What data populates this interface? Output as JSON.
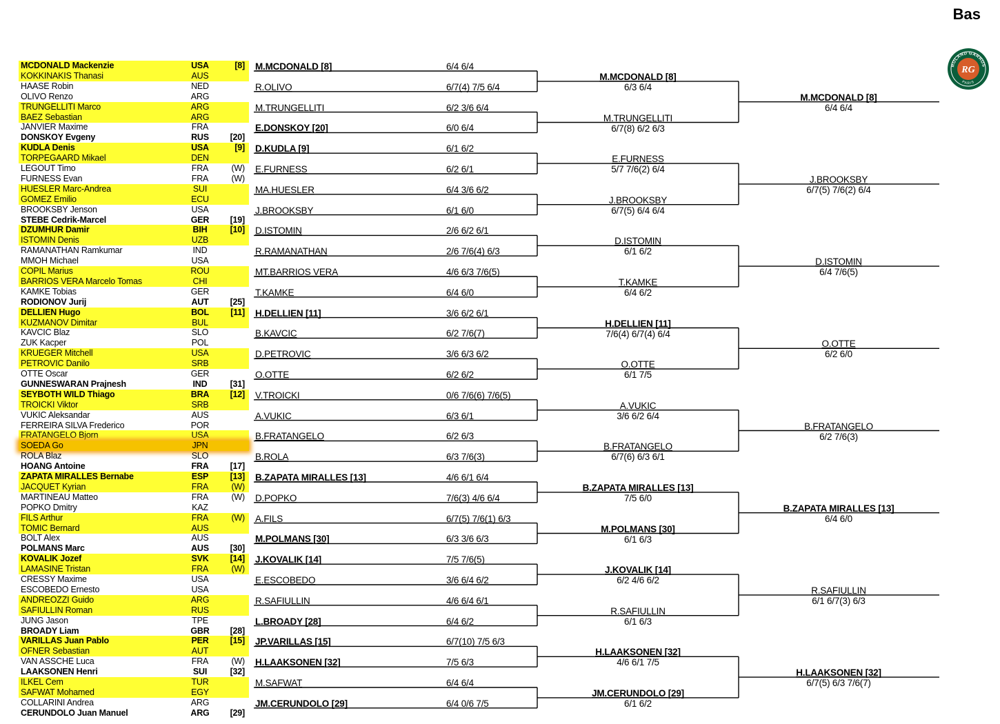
{
  "title": "Bas",
  "players": [
    {
      "name": "MCDONALD Mackenzie",
      "nat": "USA",
      "note": "[8]",
      "hl": true,
      "bold": true
    },
    {
      "name": "KOKKINAKIS Thanasi",
      "nat": "AUS",
      "note": "",
      "hl": true,
      "bold": false
    },
    {
      "name": "HAASE Robin",
      "nat": "NED",
      "note": "",
      "hl": false,
      "bold": false
    },
    {
      "name": "OLIVO Renzo",
      "nat": "ARG",
      "note": "",
      "hl": false,
      "bold": false
    },
    {
      "name": "TRUNGELLITI Marco",
      "nat": "ARG",
      "note": "",
      "hl": true,
      "bold": false
    },
    {
      "name": "BAEZ Sebastian",
      "nat": "ARG",
      "note": "",
      "hl": true,
      "bold": false
    },
    {
      "name": "JANVIER Maxime",
      "nat": "FRA",
      "note": "",
      "hl": false,
      "bold": false
    },
    {
      "name": "DONSKOY Evgeny",
      "nat": "RUS",
      "note": "[20]",
      "hl": false,
      "bold": true
    },
    {
      "name": "KUDLA Denis",
      "nat": "USA",
      "note": "[9]",
      "hl": true,
      "bold": true
    },
    {
      "name": "TORPEGAARD Mikael",
      "nat": "DEN",
      "note": "",
      "hl": true,
      "bold": false
    },
    {
      "name": "LEGOUT Timo",
      "nat": "FRA",
      "note": "(W)",
      "hl": false,
      "bold": false
    },
    {
      "name": "FURNESS Evan",
      "nat": "FRA",
      "note": "(W)",
      "hl": false,
      "bold": false
    },
    {
      "name": "HUESLER Marc-Andrea",
      "nat": "SUI",
      "note": "",
      "hl": true,
      "bold": false
    },
    {
      "name": "GOMEZ Emilio",
      "nat": "ECU",
      "note": "",
      "hl": true,
      "bold": false
    },
    {
      "name": "BROOKSBY Jenson",
      "nat": "USA",
      "note": "",
      "hl": false,
      "bold": false
    },
    {
      "name": "STEBE Cedrik-Marcel",
      "nat": "GER",
      "note": "[19]",
      "hl": false,
      "bold": true
    },
    {
      "name": "DZUMHUR Damir",
      "nat": "BIH",
      "note": "[10]",
      "hl": true,
      "bold": true
    },
    {
      "name": "ISTOMIN Denis",
      "nat": "UZB",
      "note": "",
      "hl": true,
      "bold": false
    },
    {
      "name": "RAMANATHAN Ramkumar",
      "nat": "IND",
      "note": "",
      "hl": false,
      "bold": false
    },
    {
      "name": "MMOH Michael",
      "nat": "USA",
      "note": "",
      "hl": false,
      "bold": false
    },
    {
      "name": "COPIL Marius",
      "nat": "ROU",
      "note": "",
      "hl": true,
      "bold": false
    },
    {
      "name": "BARRIOS VERA Marcelo Tomas",
      "nat": "CHI",
      "note": "",
      "hl": true,
      "bold": false
    },
    {
      "name": "KAMKE Tobias",
      "nat": "GER",
      "note": "",
      "hl": false,
      "bold": false
    },
    {
      "name": "RODIONOV Jurij",
      "nat": "AUT",
      "note": "[25]",
      "hl": false,
      "bold": true
    },
    {
      "name": "DELLIEN Hugo",
      "nat": "BOL",
      "note": "[11]",
      "hl": true,
      "bold": true
    },
    {
      "name": "KUZMANOV Dimitar",
      "nat": "BUL",
      "note": "",
      "hl": true,
      "bold": false
    },
    {
      "name": "KAVCIC Blaz",
      "nat": "SLO",
      "note": "",
      "hl": false,
      "bold": false
    },
    {
      "name": "ZUK Kacper",
      "nat": "POL",
      "note": "",
      "hl": false,
      "bold": false
    },
    {
      "name": "KRUEGER Mitchell",
      "nat": "USA",
      "note": "",
      "hl": true,
      "bold": false
    },
    {
      "name": "PETROVIC Danilo",
      "nat": "SRB",
      "note": "",
      "hl": true,
      "bold": false
    },
    {
      "name": "OTTE Oscar",
      "nat": "GER",
      "note": "",
      "hl": false,
      "bold": false
    },
    {
      "name": "GUNNESWARAN Prajnesh",
      "nat": "IND",
      "note": "[31]",
      "hl": false,
      "bold": true
    },
    {
      "name": "SEYBOTH WILD Thiago",
      "nat": "BRA",
      "note": "[12]",
      "hl": true,
      "bold": true
    },
    {
      "name": "TROICKI Viktor",
      "nat": "SRB",
      "note": "",
      "hl": true,
      "bold": false
    },
    {
      "name": "VUKIC Aleksandar",
      "nat": "AUS",
      "note": "",
      "hl": false,
      "bold": false
    },
    {
      "name": "FERREIRA SILVA Frederico",
      "nat": "POR",
      "note": "",
      "hl": false,
      "bold": false
    },
    {
      "name": "FRATANGELO Bjorn",
      "nat": "USA",
      "note": "",
      "hl": true,
      "bold": false
    },
    {
      "name": "SOEDA Go",
      "nat": "JPN",
      "note": "",
      "hl": true,
      "bold": false,
      "orange": true
    },
    {
      "name": "ROLA Blaz",
      "nat": "SLO",
      "note": "",
      "hl": false,
      "bold": false
    },
    {
      "name": "HOANG Antoine",
      "nat": "FRA",
      "note": "[17]",
      "hl": false,
      "bold": true
    },
    {
      "name": "ZAPATA MIRALLES Bernabe",
      "nat": "ESP",
      "note": "[13]",
      "hl": true,
      "bold": true
    },
    {
      "name": "JACQUET Kyrian",
      "nat": "FRA",
      "note": "(W)",
      "hl": true,
      "bold": false
    },
    {
      "name": "MARTINEAU Matteo",
      "nat": "FRA",
      "note": "(W)",
      "hl": false,
      "bold": false
    },
    {
      "name": "POPKO Dmitry",
      "nat": "KAZ",
      "note": "",
      "hl": false,
      "bold": false
    },
    {
      "name": "FILS Arthur",
      "nat": "FRA",
      "note": "(W)",
      "hl": true,
      "bold": false
    },
    {
      "name": "TOMIC Bernard",
      "nat": "AUS",
      "note": "",
      "hl": true,
      "bold": false
    },
    {
      "name": "BOLT Alex",
      "nat": "AUS",
      "note": "",
      "hl": false,
      "bold": false
    },
    {
      "name": "POLMANS Marc",
      "nat": "AUS",
      "note": "[30]",
      "hl": false,
      "bold": true
    },
    {
      "name": "KOVALIK Jozef",
      "nat": "SVK",
      "note": "[14]",
      "hl": true,
      "bold": true
    },
    {
      "name": "LAMASINE Tristan",
      "nat": "FRA",
      "note": "(W)",
      "hl": true,
      "bold": false
    },
    {
      "name": "CRESSY Maxime",
      "nat": "USA",
      "note": "",
      "hl": false,
      "bold": false
    },
    {
      "name": "ESCOBEDO Ernesto",
      "nat": "USA",
      "note": "",
      "hl": false,
      "bold": false
    },
    {
      "name": "ANDREOZZI Guido",
      "nat": "ARG",
      "note": "",
      "hl": true,
      "bold": false
    },
    {
      "name": "SAFIULLIN Roman",
      "nat": "RUS",
      "note": "",
      "hl": true,
      "bold": false
    },
    {
      "name": "JUNG Jason",
      "nat": "TPE",
      "note": "",
      "hl": false,
      "bold": false
    },
    {
      "name": "BROADY Liam",
      "nat": "GBR",
      "note": "[28]",
      "hl": false,
      "bold": true
    },
    {
      "name": "VARILLAS Juan Pablo",
      "nat": "PER",
      "note": "[15]",
      "hl": true,
      "bold": true
    },
    {
      "name": "OFNER Sebastian",
      "nat": "AUT",
      "note": "",
      "hl": true,
      "bold": false
    },
    {
      "name": "VAN ASSCHE Luca",
      "nat": "FRA",
      "note": "(W)",
      "hl": false,
      "bold": false
    },
    {
      "name": "LAAKSONEN Henri",
      "nat": "SUI",
      "note": "[32]",
      "hl": false,
      "bold": true
    },
    {
      "name": "ILKEL Cem",
      "nat": "TUR",
      "note": "",
      "hl": true,
      "bold": false
    },
    {
      "name": "SAFWAT Mohamed",
      "nat": "EGY",
      "note": "",
      "hl": true,
      "bold": false
    },
    {
      "name": "COLLARINI Andrea",
      "nat": "ARG",
      "note": "",
      "hl": false,
      "bold": false
    },
    {
      "name": "CERUNDOLO Juan Manuel",
      "nat": "ARG",
      "note": "[29]",
      "hl": false,
      "bold": true
    }
  ],
  "round1": [
    {
      "name": "M.MCDONALD   [8]",
      "score": "6/4 6/4",
      "bold": true
    },
    {
      "name": "R.OLIVO",
      "score": "6/7(4) 7/5 6/4",
      "bold": false
    },
    {
      "name": "M.TRUNGELLITI",
      "score": "6/2 3/6 6/4",
      "bold": false
    },
    {
      "name": "E.DONSKOY   [20]",
      "score": "6/0 6/4",
      "bold": true
    },
    {
      "name": "D.KUDLA   [9]",
      "score": "6/1 6/2",
      "bold": true
    },
    {
      "name": "E.FURNESS",
      "score": "6/2 6/1",
      "bold": false
    },
    {
      "name": "MA.HUESLER",
      "score": "6/4 3/6 6/2",
      "bold": false
    },
    {
      "name": "J.BROOKSBY",
      "score": "6/1 6/0",
      "bold": false
    },
    {
      "name": "D.ISTOMIN",
      "score": "2/6 6/2 6/1",
      "bold": false
    },
    {
      "name": "R.RAMANATHAN",
      "score": "2/6 7/6(4) 6/3",
      "bold": false
    },
    {
      "name": "MT.BARRIOS VERA",
      "score": "4/6 6/3 7/6(5)",
      "bold": false
    },
    {
      "name": "T.KAMKE",
      "score": "6/4 6/0",
      "bold": false
    },
    {
      "name": "H.DELLIEN   [11]",
      "score": "3/6 6/2 6/1",
      "bold": true
    },
    {
      "name": "B.KAVCIC",
      "score": "6/2 7/6(7)",
      "bold": false
    },
    {
      "name": "D.PETROVIC",
      "score": "3/6 6/3 6/2",
      "bold": false
    },
    {
      "name": "O.OTTE",
      "score": "6/2 6/2",
      "bold": false
    },
    {
      "name": "V.TROICKI",
      "score": "0/6 7/6(6) 7/6(5)",
      "bold": false
    },
    {
      "name": "A.VUKIC",
      "score": "6/3 6/1",
      "bold": false
    },
    {
      "name": "B.FRATANGELO",
      "score": "6/2 6/3",
      "bold": false
    },
    {
      "name": "B.ROLA",
      "score": "6/3 7/6(3)",
      "bold": false
    },
    {
      "name": "B.ZAPATA MIRALLES   [13]",
      "score": "4/6 6/1 6/4",
      "bold": true
    },
    {
      "name": "D.POPKO",
      "score": "7/6(3) 4/6 6/4",
      "bold": false
    },
    {
      "name": "A.FILS",
      "score": "6/7(5) 7/6(1) 6/3",
      "bold": false
    },
    {
      "name": "M.POLMANS   [30]",
      "score": "6/3 3/6 6/3",
      "bold": true
    },
    {
      "name": "J.KOVALIK   [14]",
      "score": "7/5 7/6(5)",
      "bold": true
    },
    {
      "name": "E.ESCOBEDO",
      "score": "3/6 6/4 6/2",
      "bold": false
    },
    {
      "name": "R.SAFIULLIN",
      "score": "4/6 6/4 6/1",
      "bold": false
    },
    {
      "name": "L.BROADY   [28]",
      "score": "6/4 6/2",
      "bold": true
    },
    {
      "name": "JP.VARILLAS   [15]",
      "score": "6/7(10) 7/5 6/3",
      "bold": true
    },
    {
      "name": "H.LAAKSONEN   [32]",
      "score": "7/5 6/3",
      "bold": true
    },
    {
      "name": "M.SAFWAT",
      "score": "6/4 6/4",
      "bold": false
    },
    {
      "name": "JM.CERUNDOLO   [29]",
      "score": "6/4 0/6 7/5",
      "bold": true
    }
  ],
  "round2": [
    {
      "name": "M.MCDONALD   [8]",
      "score": "6/3 6/4",
      "bold": true
    },
    {
      "name": "M.TRUNGELLITI",
      "score": "6/7(8) 6/2 6/3",
      "bold": false
    },
    {
      "name": "E.FURNESS",
      "score": "5/7 7/6(2) 6/4",
      "bold": false
    },
    {
      "name": "J.BROOKSBY",
      "score": "6/7(5) 6/4 6/4",
      "bold": false
    },
    {
      "name": "D.ISTOMIN",
      "score": "6/1 6/2",
      "bold": false
    },
    {
      "name": "T.KAMKE",
      "score": "6/4 6/2",
      "bold": false
    },
    {
      "name": "H.DELLIEN   [11]",
      "score": "7/6(4) 6/7(4) 6/4",
      "bold": true
    },
    {
      "name": "O.OTTE",
      "score": "6/1 7/5",
      "bold": false
    },
    {
      "name": "A.VUKIC",
      "score": "3/6 6/2 6/4",
      "bold": false
    },
    {
      "name": "B.FRATANGELO",
      "score": "6/7(6) 6/3 6/1",
      "bold": false
    },
    {
      "name": "B.ZAPATA MIRALLES   [13]",
      "score": "7/5 6/0",
      "bold": true
    },
    {
      "name": "M.POLMANS   [30]",
      "score": "6/1 6/3",
      "bold": true
    },
    {
      "name": "J.KOVALIK   [14]",
      "score": "6/2 4/6 6/2",
      "bold": true
    },
    {
      "name": "R.SAFIULLIN",
      "score": "6/1 6/3",
      "bold": false
    },
    {
      "name": "H.LAAKSONEN   [32]",
      "score": "4/6 6/1 7/5",
      "bold": true
    },
    {
      "name": "JM.CERUNDOLO   [29]",
      "score": "6/1 6/2",
      "bold": true
    }
  ],
  "round3": [
    {
      "name": "M.MCDONALD   [8]",
      "score": "6/4 6/4",
      "bold": true
    },
    {
      "name": "J.BROOKSBY",
      "score": "6/7(5) 7/6(2) 6/4",
      "bold": false
    },
    {
      "name": "D.ISTOMIN",
      "score": "6/4 7/6(5)",
      "bold": false
    },
    {
      "name": "O.OTTE",
      "score": "6/2 6/0",
      "bold": false
    },
    {
      "name": "B.FRATANGELO",
      "score": "6/2 7/6(3)",
      "bold": false
    },
    {
      "name": "B.ZAPATA MIRALLES   [13]",
      "score": "6/4 6/0",
      "bold": true
    },
    {
      "name": "R.SAFIULLIN",
      "score": "6/1 6/7(3) 6/3",
      "bold": false
    },
    {
      "name": "H.LAAKSONEN   [32]",
      "score": "6/7(5) 6/3 7/6(7)",
      "bold": true
    }
  ],
  "logo": {
    "icon": "roland-garros-logo",
    "text_top": "ROLAND GARROS",
    "text_bottom": "PARIS",
    "monogram": "RG",
    "colors": {
      "ring": "#0b5e3b",
      "fill": "#d75d2a",
      "text": "#ffffff"
    }
  },
  "colors": {
    "highlight": "#ffff33",
    "orange_glow": "#f5a623"
  }
}
